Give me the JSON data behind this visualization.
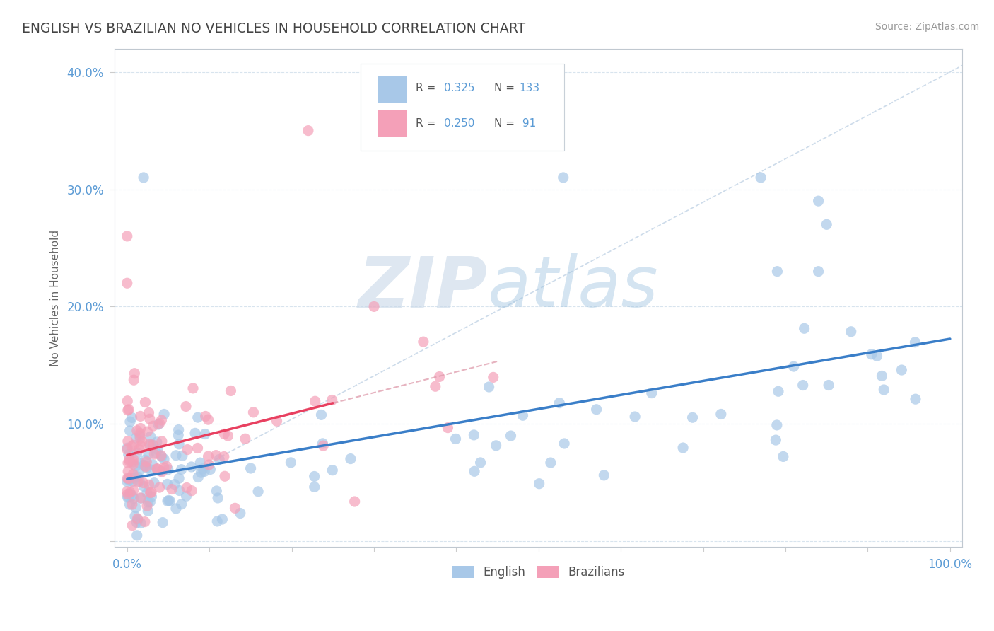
{
  "title": "ENGLISH VS BRAZILIAN NO VEHICLES IN HOUSEHOLD CORRELATION CHART",
  "source": "Source: ZipAtlas.com",
  "ylabel": "No Vehicles in Household",
  "xlim": [
    0.0,
    1.0
  ],
  "ylim": [
    -0.005,
    0.42
  ],
  "english_R": 0.325,
  "english_N": 133,
  "brazilian_R": 0.25,
  "brazilian_N": 91,
  "english_color": "#a8c8e8",
  "brazilian_color": "#f4a0b8",
  "english_line_color": "#3a7ec8",
  "brazilian_line_color": "#e84060",
  "diag_line_color": "#e0a0b0",
  "watermark_zip": "ZIP",
  "watermark_atlas": "atlas",
  "background_color": "#ffffff",
  "grid_color": "#d8e4ee",
  "eng_seed": 42,
  "braz_seed": 7
}
